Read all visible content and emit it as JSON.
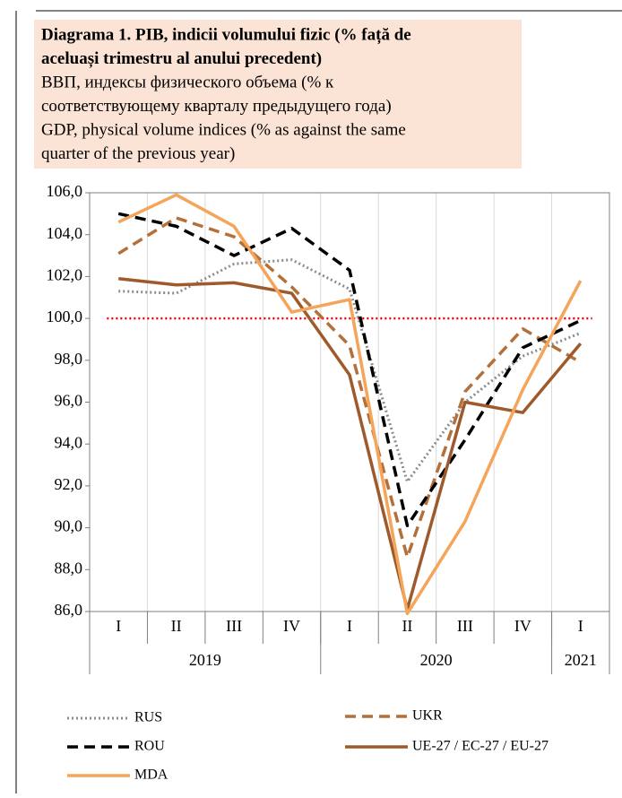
{
  "chart_data": {
    "type": "line",
    "title_lines": [
      "Diagrama 1. PIB, indicii volumului fizic (% față de",
      "aceluași trimestru al anului precedent)",
      "ВВП, индексы физического объема (% к",
      "соответствующему кварталу предыдущего года)",
      "GDP, physical volume indices (% as against the same",
      "quarter of the previous year)"
    ],
    "title_bold_lines": 2,
    "categories": [
      "I",
      "II",
      "III",
      "IV",
      "I",
      "II",
      "III",
      "IV",
      "I"
    ],
    "groups": [
      {
        "label": "2019",
        "span": 4
      },
      {
        "label": "2020",
        "span": 4
      },
      {
        "label": "2021",
        "span": 1
      }
    ],
    "ylim": [
      86,
      106
    ],
    "yticks": [
      {
        "value": 86,
        "label": "86,0"
      },
      {
        "value": 88,
        "label": "88,0"
      },
      {
        "value": 90,
        "label": "90,0"
      },
      {
        "value": 92,
        "label": "92,0"
      },
      {
        "value": 94,
        "label": "94,0"
      },
      {
        "value": 96,
        "label": "96,0"
      },
      {
        "value": 98,
        "label": "98,0"
      },
      {
        "value": 100,
        "label": "100,0"
      },
      {
        "value": 102,
        "label": "102,0"
      },
      {
        "value": 104,
        "label": "104,0"
      },
      {
        "value": 106,
        "label": "106,0"
      }
    ],
    "reference_line": {
      "value": 100,
      "color": "#e8000b"
    },
    "vertical_grid": true,
    "series": [
      {
        "name": "RUS",
        "color": "#8c8c8c",
        "dash": "dotted",
        "values": [
          101.3,
          101.2,
          102.6,
          102.8,
          101.4,
          92.2,
          96.0,
          98.2,
          99.3
        ]
      },
      {
        "name": "UKR",
        "color": "#b3703a",
        "dash": "dashed",
        "values": [
          103.1,
          104.8,
          103.9,
          101.5,
          98.7,
          88.6,
          96.5,
          99.5,
          97.9
        ]
      },
      {
        "name": "ROU",
        "color": "#000000",
        "dash": "dashed",
        "values": [
          105.0,
          104.4,
          103.0,
          104.3,
          102.3,
          90.1,
          94.2,
          98.6,
          99.9
        ]
      },
      {
        "name": "UE-27 / EC-27 / EU-27",
        "color": "#9e5a2b",
        "dash": "solid",
        "values": [
          101.9,
          101.6,
          101.7,
          101.2,
          97.3,
          86.1,
          96.0,
          95.5,
          98.8
        ]
      },
      {
        "name": "MDA",
        "color": "#f4a55a",
        "dash": "solid",
        "values": [
          104.6,
          105.9,
          104.4,
          100.3,
          100.9,
          85.9,
          90.3,
          96.6,
          101.8
        ]
      }
    ]
  }
}
